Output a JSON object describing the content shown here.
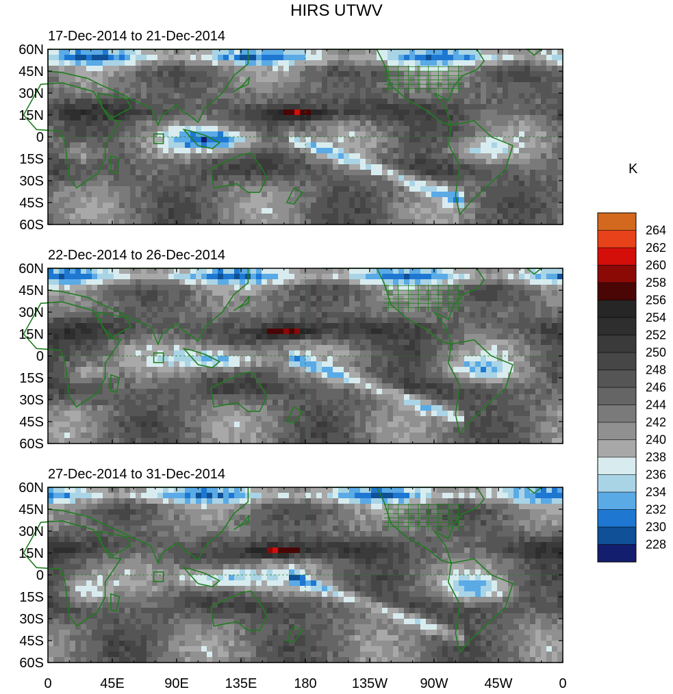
{
  "title": "HIRS UTWV",
  "panels": [
    {
      "subtitle": "17-Dec-2014 to 21-Dec-2014"
    },
    {
      "subtitle": "22-Dec-2014 to 26-Dec-2014"
    },
    {
      "subtitle": "27-Dec-2014 to 31-Dec-2014"
    }
  ],
  "lat_labels": [
    "60N",
    "45N",
    "30N",
    "15N",
    "0",
    "15S",
    "30S",
    "45S",
    "60S"
  ],
  "lon_labels": [
    "0",
    "45E",
    "90E",
    "135E",
    "180",
    "135W",
    "90W",
    "45W",
    "0"
  ],
  "colorbar": {
    "unit": "K",
    "levels": [
      "264",
      "262",
      "260",
      "258",
      "256",
      "254",
      "252",
      "250",
      "248",
      "246",
      "244",
      "242",
      "240",
      "238",
      "236",
      "234",
      "232",
      "230",
      "228"
    ],
    "colors": [
      "#d2691e",
      "#e8421a",
      "#d40f0a",
      "#8b0a06",
      "#4a0505",
      "#262626",
      "#2e2e2e",
      "#3a3a3a",
      "#464646",
      "#555555",
      "#656565",
      "#7a7a7a",
      "#909090",
      "#a8a8a8",
      "#d8ecef",
      "#a9d4e6",
      "#5aaae6",
      "#1e78d2",
      "#0f5096",
      "#141e6e"
    ]
  },
  "land_color": "#1e7d1e"
}
